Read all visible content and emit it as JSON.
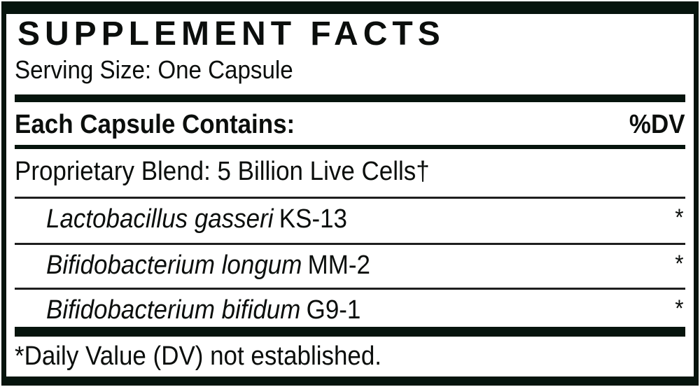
{
  "panel": {
    "title": "SUPPLEMENT FACTS",
    "serving_size": "Serving Size: One Capsule",
    "header": {
      "left": "Each Capsule Contains:",
      "right": "%DV"
    },
    "blend_label": "Proprietary Blend: 5 Billion Live Cells†",
    "ingredients": [
      {
        "species": "Lactobacillus gasseri",
        "strain": "KS-13",
        "dv": "*"
      },
      {
        "species": "Bifidobacterium longum",
        "strain": "MM-2",
        "dv": "*"
      },
      {
        "species": "Bifidobacterium bifidum",
        "strain": "G9-1",
        "dv": "*"
      }
    ],
    "footnote": "*Daily Value (DV) not established.",
    "colors": {
      "frame": "#06140d",
      "text": "#0b0e0c",
      "rule": "#1e1e1e",
      "background": "#ffffff"
    }
  }
}
